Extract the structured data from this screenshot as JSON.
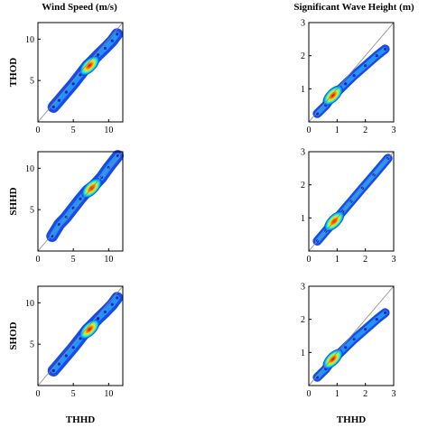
{
  "column_titles": [
    "Wind Speed (m/s)",
    "Significant Wave Height (m)"
  ],
  "row_labels": [
    "THOD",
    "SHHD",
    "SHOD"
  ],
  "x_label": "THHD",
  "chart_data": [
    {
      "type": "scatter",
      "column": 0,
      "row": 0,
      "title": "Wind Speed (m/s)",
      "xlabel": "",
      "ylabel": "THOD",
      "xlim": [
        0,
        12
      ],
      "ylim": [
        0,
        12
      ],
      "xticks": [
        0,
        5,
        10
      ],
      "yticks": [
        5,
        10
      ],
      "series": [
        {
          "points": [
            [
              2.2,
              1.8
            ],
            [
              3,
              2.6
            ],
            [
              4,
              3.6
            ],
            [
              5,
              4.6
            ],
            [
              6,
              5.7
            ],
            [
              7,
              6.8
            ],
            [
              7.5,
              7.2
            ],
            [
              8.5,
              8.1
            ],
            [
              9.5,
              8.9
            ],
            [
              10.5,
              9.8
            ],
            [
              11.2,
              10.6
            ]
          ]
        }
      ]
    },
    {
      "type": "scatter",
      "column": 1,
      "row": 0,
      "title": "Significant Wave Height (m)",
      "xlabel": "",
      "ylabel": "",
      "xlim": [
        0,
        3
      ],
      "ylim": [
        0,
        3
      ],
      "xticks": [
        0,
        1,
        2,
        3
      ],
      "yticks": [
        1,
        2,
        3
      ],
      "series": [
        {
          "points": [
            [
              0.3,
              0.25
            ],
            [
              0.6,
              0.5
            ],
            [
              0.8,
              0.75
            ],
            [
              1.0,
              0.9
            ],
            [
              1.3,
              1.15
            ],
            [
              1.6,
              1.4
            ],
            [
              2.0,
              1.7
            ],
            [
              2.4,
              2.0
            ],
            [
              2.7,
              2.2
            ]
          ]
        }
      ]
    },
    {
      "type": "scatter",
      "column": 0,
      "row": 1,
      "title": "",
      "xlabel": "",
      "ylabel": "SHHD",
      "xlim": [
        0,
        12
      ],
      "ylim": [
        0,
        12
      ],
      "xticks": [
        0,
        5,
        10
      ],
      "yticks": [
        5,
        10
      ],
      "series": [
        {
          "points": [
            [
              2,
              1.8
            ],
            [
              3,
              3.2
            ],
            [
              4,
              4.1
            ],
            [
              5,
              5.2
            ],
            [
              6,
              6.3
            ],
            [
              7,
              7.3
            ],
            [
              7.8,
              7.8
            ],
            [
              9,
              8.9
            ],
            [
              10,
              10.1
            ],
            [
              11.3,
              11.5
            ]
          ]
        }
      ]
    },
    {
      "type": "scatter",
      "column": 1,
      "row": 1,
      "title": "",
      "xlabel": "",
      "ylabel": "",
      "xlim": [
        0,
        3
      ],
      "ylim": [
        0,
        3
      ],
      "xticks": [
        0,
        1,
        2,
        3
      ],
      "yticks": [
        1,
        2,
        3
      ],
      "series": [
        {
          "points": [
            [
              0.3,
              0.3
            ],
            [
              0.6,
              0.6
            ],
            [
              0.9,
              0.9
            ],
            [
              1.2,
              1.2
            ],
            [
              1.5,
              1.5
            ],
            [
              1.9,
              1.9
            ],
            [
              2.3,
              2.3
            ],
            [
              2.8,
              2.8
            ]
          ]
        }
      ]
    },
    {
      "type": "scatter",
      "column": 0,
      "row": 2,
      "title": "",
      "xlabel": "THHD",
      "ylabel": "SHOD",
      "xlim": [
        0,
        12
      ],
      "ylim": [
        0,
        12
      ],
      "xticks": [
        0,
        5,
        10
      ],
      "yticks": [
        5,
        10
      ],
      "series": [
        {
          "points": [
            [
              2.2,
              1.8
            ],
            [
              3,
              2.6
            ],
            [
              4,
              3.6
            ],
            [
              5,
              4.6
            ],
            [
              6,
              5.7
            ],
            [
              7,
              6.8
            ],
            [
              7.5,
              7.2
            ],
            [
              8.5,
              8.1
            ],
            [
              9.5,
              8.9
            ],
            [
              10.5,
              9.8
            ],
            [
              11.2,
              10.6
            ]
          ]
        }
      ]
    },
    {
      "type": "scatter",
      "column": 1,
      "row": 2,
      "title": "",
      "xlabel": "THHD",
      "ylabel": "",
      "xlim": [
        0,
        3
      ],
      "ylim": [
        0,
        3
      ],
      "xticks": [
        0,
        1,
        2,
        3
      ],
      "yticks": [
        1,
        2,
        3
      ],
      "series": [
        {
          "points": [
            [
              0.3,
              0.25
            ],
            [
              0.6,
              0.5
            ],
            [
              0.8,
              0.75
            ],
            [
              1.0,
              0.9
            ],
            [
              1.3,
              1.15
            ],
            [
              1.6,
              1.4
            ],
            [
              2.0,
              1.7
            ],
            [
              2.4,
              2.0
            ],
            [
              2.7,
              2.2
            ]
          ]
        }
      ]
    }
  ]
}
